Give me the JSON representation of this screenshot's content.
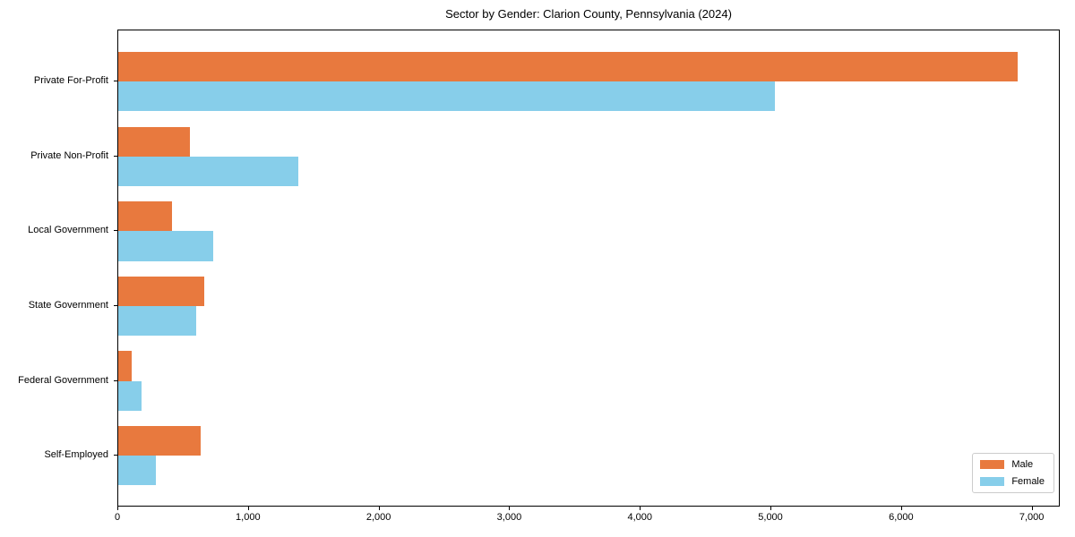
{
  "title": "Sector by Gender: Clarion County, Pennsylvania (2024)",
  "chart_data": {
    "type": "bar",
    "orientation": "horizontal",
    "title": "Sector by Gender: Clarion County, Pennsylvania (2024)",
    "categories": [
      "Private For-Profit",
      "Private Non-Profit",
      "Local Government",
      "State Government",
      "Federal Government",
      "Self-Employed"
    ],
    "series": [
      {
        "name": "Male",
        "color": "#E8793E",
        "values": [
          6900,
          550,
          410,
          660,
          100,
          630
        ]
      },
      {
        "name": "Female",
        "color": "#87CEEA",
        "values": [
          5040,
          1380,
          730,
          600,
          180,
          290
        ]
      }
    ],
    "xlabel": "",
    "ylabel": "",
    "xlim": [
      0,
      7215
    ],
    "xticks": [
      0,
      1000,
      2000,
      3000,
      4000,
      5000,
      6000,
      7000
    ],
    "xtick_labels": [
      "0",
      "1,000",
      "2,000",
      "3,000",
      "4,000",
      "5,000",
      "6,000",
      "7,000"
    ],
    "grid": false,
    "legend": {
      "position": "lower right",
      "entries": [
        "Male",
        "Female"
      ]
    },
    "colors": {
      "male": "#E8793E",
      "female": "#87CEEA",
      "axis": "#000000",
      "frame": "#000000",
      "background": "#FFFFFF",
      "legend_border": "#CCCCCC"
    }
  }
}
